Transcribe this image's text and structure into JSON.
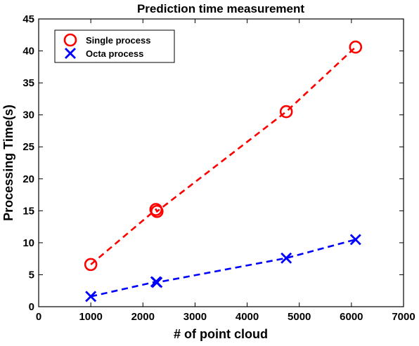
{
  "chart_data": {
    "type": "line",
    "title": "Prediction time measurement",
    "xlabel": "# of point cloud",
    "ylabel": "Processing Time(s)",
    "xlim": [
      0,
      7000
    ],
    "ylim": [
      0,
      45
    ],
    "xticks": [
      0,
      1000,
      2000,
      3000,
      4000,
      5000,
      6000,
      7000
    ],
    "yticks": [
      0,
      5,
      10,
      15,
      20,
      25,
      30,
      35,
      40,
      45
    ],
    "grid": false,
    "legend_position": "top-left",
    "series": [
      {
        "name": "Single process",
        "color": "#ff0000",
        "marker": "circle",
        "line_style": "dashed",
        "x": [
          1000,
          2250,
          2270,
          4750,
          6080
        ],
        "y": [
          6.6,
          15.2,
          14.9,
          30.5,
          40.6
        ]
      },
      {
        "name": "Octa process",
        "color": "#0000ff",
        "marker": "x",
        "line_style": "dashed",
        "x": [
          1000,
          2250,
          2270,
          4750,
          6080
        ],
        "y": [
          1.6,
          3.9,
          3.8,
          7.6,
          10.5
        ]
      }
    ]
  }
}
